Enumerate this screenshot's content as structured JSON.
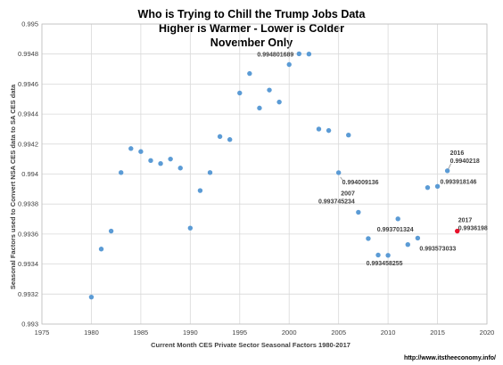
{
  "chart_data": {
    "type": "scatter",
    "title_lines": [
      "Who is Trying to Chill the Trump Jobs Data",
      "Higher is Warmer - Lower is Colder",
      "November Only"
    ],
    "xlabel": "Current Month CES Private Sector Seasonal Factors 1980-2017",
    "ylabel": "Seasonal Factors used to Convert NSA CES data to SA CES data",
    "xlim": [
      1975,
      2020
    ],
    "ylim": [
      0.993,
      0.995
    ],
    "x_ticks": [
      "1975",
      "1980",
      "1985",
      "1990",
      "1995",
      "2000",
      "2005",
      "2010",
      "2015",
      "2020"
    ],
    "y_ticks": [
      "0.993",
      "0.9932",
      "0.9934",
      "0.9936",
      "0.9938",
      "0.994",
      "0.9942",
      "0.9944",
      "0.9946",
      "0.9948",
      "0.995"
    ],
    "grid": true,
    "series_color": "#5b9bd5",
    "highlight_color": "#e8102a",
    "points": [
      {
        "x": 1980,
        "y": 0.99318
      },
      {
        "x": 1981,
        "y": 0.9935
      },
      {
        "x": 1982,
        "y": 0.99362
      },
      {
        "x": 1983,
        "y": 0.99401
      },
      {
        "x": 1984,
        "y": 0.99417
      },
      {
        "x": 1985,
        "y": 0.99415
      },
      {
        "x": 1986,
        "y": 0.99409
      },
      {
        "x": 1987,
        "y": 0.99407
      },
      {
        "x": 1988,
        "y": 0.9941
      },
      {
        "x": 1989,
        "y": 0.99404
      },
      {
        "x": 1990,
        "y": 0.99364
      },
      {
        "x": 1991,
        "y": 0.99389
      },
      {
        "x": 1992,
        "y": 0.99401
      },
      {
        "x": 1993,
        "y": 0.99425
      },
      {
        "x": 1994,
        "y": 0.99423
      },
      {
        "x": 1995,
        "y": 0.99454
      },
      {
        "x": 1996,
        "y": 0.99467
      },
      {
        "x": 1997,
        "y": 0.99444
      },
      {
        "x": 1998,
        "y": 0.99456
      },
      {
        "x": 1999,
        "y": 0.99448
      },
      {
        "x": 2000,
        "y": 0.99473
      },
      {
        "x": 2001,
        "y": 0.994801689
      },
      {
        "x": 2002,
        "y": 0.9948
      },
      {
        "x": 2003,
        "y": 0.9943
      },
      {
        "x": 2004,
        "y": 0.99429
      },
      {
        "x": 2005,
        "y": 0.994009136
      },
      {
        "x": 2006,
        "y": 0.99426
      },
      {
        "x": 2007,
        "y": 0.993745234
      },
      {
        "x": 2008,
        "y": 0.99357
      },
      {
        "x": 2009,
        "y": 0.99346
      },
      {
        "x": 2010,
        "y": 0.993458255
      },
      {
        "x": 2011,
        "y": 0.993701324
      },
      {
        "x": 2012,
        "y": 0.99353
      },
      {
        "x": 2013,
        "y": 0.993573033
      },
      {
        "x": 2014,
        "y": 0.99391
      },
      {
        "x": 2015,
        "y": 0.993918146
      },
      {
        "x": 2016,
        "y": 0.9940218
      },
      {
        "x": 2017,
        "y": 0.9936198,
        "highlight": true
      }
    ],
    "annotations": [
      {
        "x": 2001,
        "y": 0.994801689,
        "lines": [
          "0.994801689"
        ]
      },
      {
        "x": 2005,
        "y": 0.994009136,
        "lines": [
          "0.994009136"
        ]
      },
      {
        "x": 2007,
        "y": 0.993745234,
        "lines": [
          "2007",
          "0.993745234"
        ]
      },
      {
        "x": 2011,
        "y": 0.993701324,
        "lines": [
          "0.993701324"
        ]
      },
      {
        "x": 2013,
        "y": 0.993573033,
        "lines": [
          "0.993573033"
        ]
      },
      {
        "x": 2010,
        "y": 0.993458255,
        "lines": [
          "0.993458255"
        ]
      },
      {
        "x": 2015,
        "y": 0.993918146,
        "lines": [
          "0.993918146"
        ]
      },
      {
        "x": 2016,
        "y": 0.9940218,
        "lines": [
          "2016",
          "0.9940218"
        ]
      },
      {
        "x": 2017,
        "y": 0.9936198,
        "lines": [
          "2017",
          "0.9936198"
        ]
      }
    ]
  },
  "credit": "http://www.itstheeconomy.info/"
}
